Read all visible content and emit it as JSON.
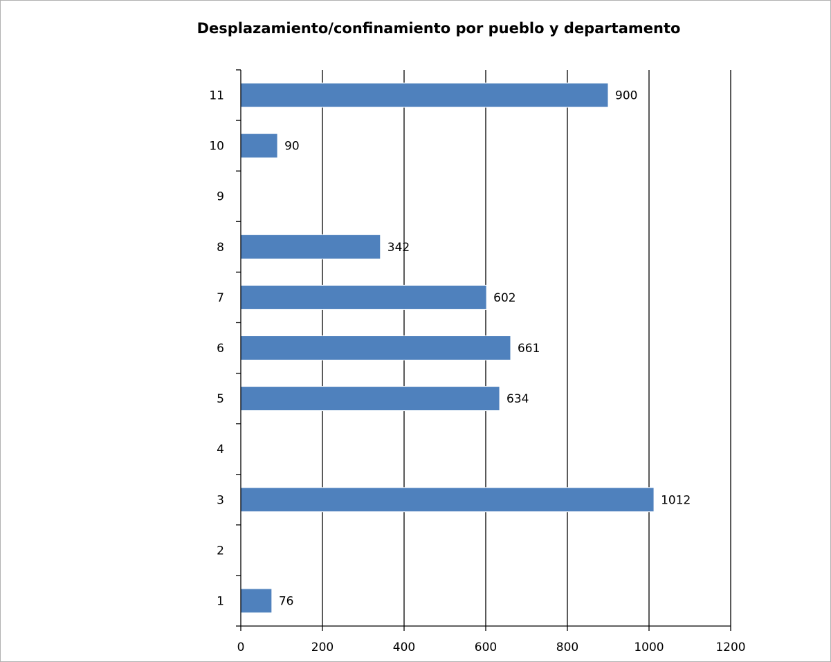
{
  "chart_data": {
    "type": "bar",
    "orientation": "horizontal",
    "title": "Desplazamiento/confinamiento por pueblo y departamento",
    "xlabel": "",
    "ylabel": "",
    "categories": [
      "1",
      "2",
      "3",
      "4",
      "5",
      "6",
      "7",
      "8",
      "9",
      "10",
      "11"
    ],
    "values": [
      76,
      null,
      1012,
      null,
      634,
      661,
      602,
      342,
      null,
      90,
      900
    ],
    "data_labels": [
      "76",
      "",
      "1012",
      "",
      "634",
      "661",
      "602",
      "342",
      "",
      "90",
      "900"
    ],
    "xlim": [
      0,
      1200
    ],
    "x_ticks": [
      0,
      200,
      400,
      600,
      800,
      1000,
      1200
    ],
    "x_tick_labels": [
      "0",
      "200",
      "400",
      "600",
      "800",
      "1000",
      "1200"
    ],
    "grid": "vertical major gridlines",
    "bar_color": "#4f81bd",
    "legend": "none"
  }
}
